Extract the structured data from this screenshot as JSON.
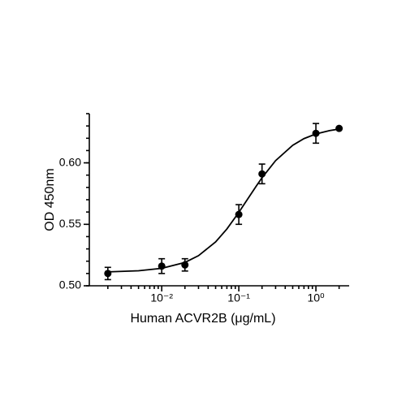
{
  "chart_data": {
    "type": "scatter",
    "xlabel": "Human ACVR2B (μg/mL)",
    "ylabel": "OD 450nm",
    "x": [
      0.002,
      0.01,
      0.02,
      0.1,
      0.2,
      1,
      2
    ],
    "series": [
      {
        "color": "#000000",
        "values": [
          0.51,
          0.516,
          0.517,
          0.558,
          0.591,
          0.624,
          0.628
        ],
        "errors": [
          0.005,
          0.006,
          0.005,
          0.008,
          0.008,
          0.008,
          0
        ]
      }
    ],
    "fit": {
      "color": "#000000",
      "x": [
        0.002,
        0.005,
        0.01,
        0.02,
        0.03,
        0.05,
        0.07,
        0.1,
        0.13,
        0.17,
        0.2,
        0.3,
        0.5,
        0.7,
        1,
        1.5,
        2
      ],
      "values": [
        0.5113,
        0.5122,
        0.5142,
        0.519,
        0.5245,
        0.5357,
        0.5462,
        0.5597,
        0.5705,
        0.5815,
        0.5879,
        0.6018,
        0.6143,
        0.6197,
        0.6235,
        0.6262,
        0.6275
      ]
    },
    "xscale": "log",
    "xlim": [
      0.00115,
      2.7
    ],
    "xticks": [
      {
        "value": 0.01,
        "label": "10⁻²"
      },
      {
        "value": 0.1,
        "label": "10⁻¹"
      },
      {
        "value": 1,
        "label": "10⁰"
      }
    ],
    "ylim": [
      0.5,
      0.64
    ],
    "yticks": [
      {
        "value": 0.5,
        "label": "0.50"
      },
      {
        "value": 0.55,
        "label": "0.55"
      },
      {
        "value": 0.6,
        "label": "0.60"
      }
    ]
  }
}
